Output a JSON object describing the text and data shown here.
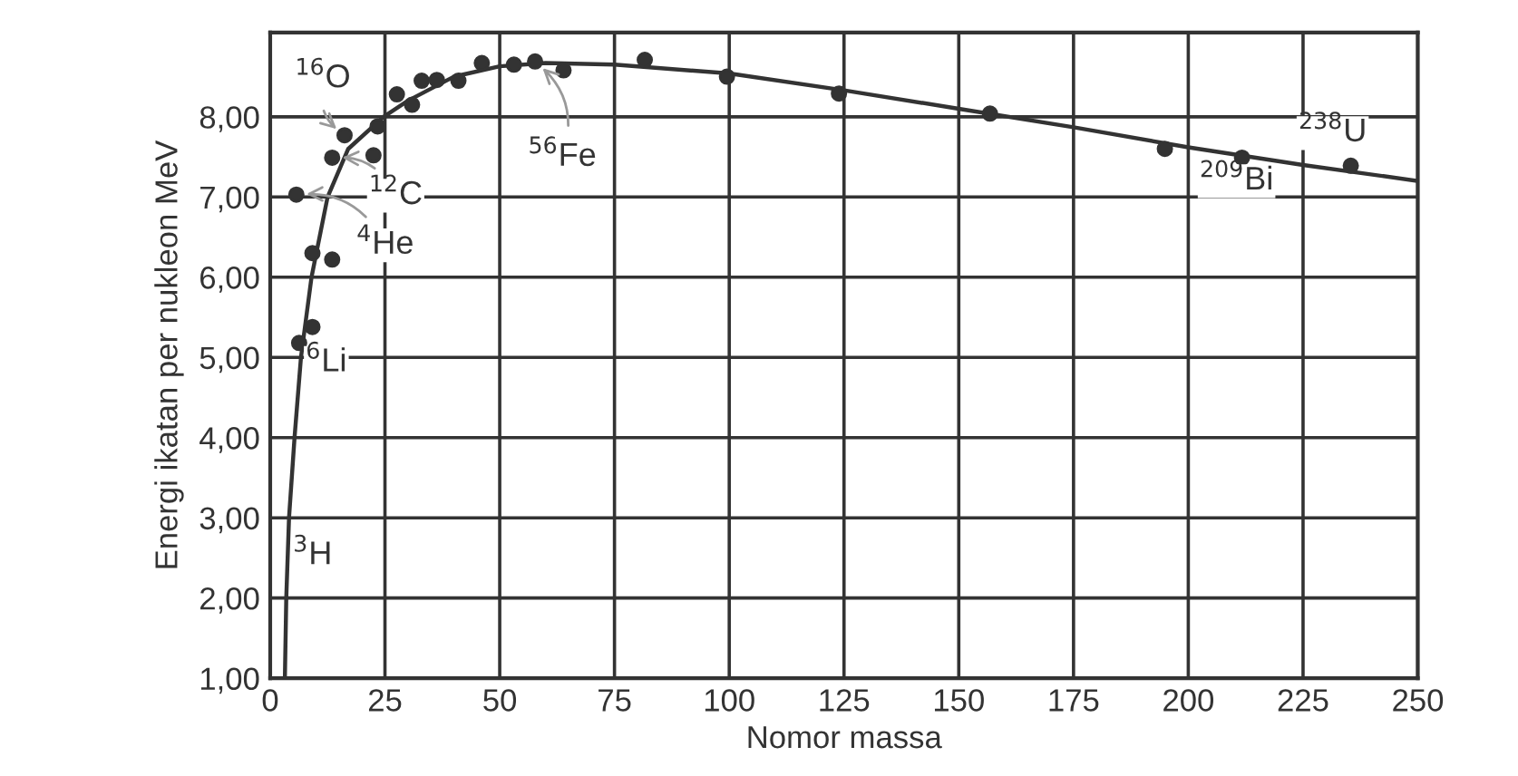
{
  "chart_data": {
    "type": "scatter",
    "xlabel": "Nomor massa",
    "ylabel": "Energi ikatan per nukleon MeV",
    "xlim": [
      0,
      250
    ],
    "ylim": [
      1,
      9.05
    ],
    "xticks": [
      0,
      25,
      50,
      75,
      100,
      125,
      150,
      175,
      200,
      225,
      250
    ],
    "yticks": [
      {
        "value": 1,
        "label": "1,00"
      },
      {
        "value": 2,
        "label": "2,00"
      },
      {
        "value": 3,
        "label": "3,00"
      },
      {
        "value": 4,
        "label": "4,00"
      },
      {
        "value": 5,
        "label": "5,00"
      },
      {
        "value": 6,
        "label": "6,00"
      },
      {
        "value": 7,
        "label": "7,00"
      },
      {
        "value": 8,
        "label": "8,00"
      }
    ],
    "grid": true,
    "legend": false,
    "series": [
      {
        "type": "line",
        "color": "#333333",
        "marker": "none",
        "line_style": "solid",
        "x": [
          3.2,
          3.5,
          4.1,
          5.3,
          6.7,
          9,
          12.5,
          17,
          24.7,
          30,
          40,
          50,
          60,
          75,
          100,
          125,
          150,
          175,
          200,
          225,
          250
        ],
        "values": [
          1,
          2,
          3,
          4,
          5,
          6,
          7,
          7.6,
          8.0,
          8.2,
          8.5,
          8.63,
          8.67,
          8.65,
          8.54,
          8.33,
          8.1,
          7.87,
          7.62,
          7.4,
          7.2
        ]
      },
      {
        "color": "#333333",
        "marker": "circle",
        "x": [
          6.3,
          9.2,
          9.2,
          13.5,
          5.7,
          13.5,
          22.5,
          16.2,
          23.4,
          27.6,
          30.9,
          33.0,
          36.3,
          41.0,
          46.1,
          53.1,
          57.7,
          63.9,
          81.6,
          99.5,
          123.9,
          156.8,
          194.9,
          211.7,
          235.4
        ],
        "values": [
          5.18,
          5.38,
          6.3,
          6.22,
          7.03,
          7.49,
          7.52,
          7.77,
          7.88,
          8.28,
          8.15,
          8.45,
          8.46,
          8.45,
          8.67,
          8.65,
          8.69,
          8.58,
          8.71,
          8.5,
          8.29,
          8.04,
          7.6,
          7.49,
          7.39
        ]
      }
    ],
    "annotations": [
      {
        "text": "$^{16}$O",
        "x": 16.2,
        "y": 7.77
      },
      {
        "text": "$^{12}$C",
        "x": 13.5,
        "y": 7.49
      },
      {
        "text": "$^{4}$He",
        "x": 5.7,
        "y": 7.03
      },
      {
        "text": "$^{56}$Fe",
        "x": 57.7,
        "y": 8.69
      },
      {
        "text": "$^{6}$Li",
        "x": 6.3,
        "y": 5.18
      },
      {
        "text": "$^{3}$H",
        "x": 4.1,
        "y": 3
      },
      {
        "text": "$^{209}$Bi",
        "x": 211.7,
        "y": 7.49
      },
      {
        "text": "$^{238}$U",
        "x": 235.4,
        "y": 7.39
      }
    ]
  }
}
